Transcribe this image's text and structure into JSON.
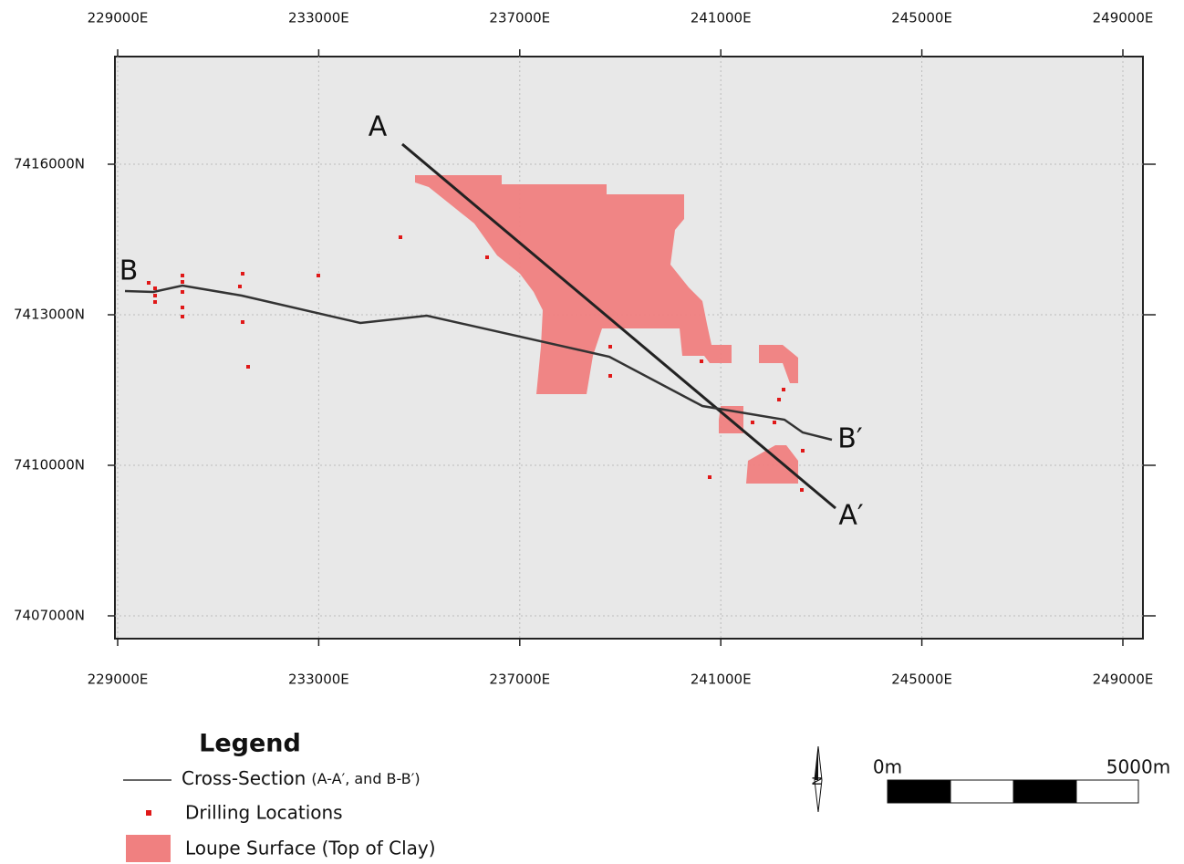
{
  "map": {
    "x_ticks": [
      "229000E",
      "233000E",
      "237000E",
      "241000E",
      "245000E",
      "249000E"
    ],
    "y_ticks": [
      "7416000N",
      "7413000N",
      "7410000N",
      "7407000N"
    ],
    "section_labels": [
      "A",
      "A′",
      "B",
      "B′"
    ],
    "legend": {
      "title": "Legend",
      "items": [
        {
          "label": "Cross-Section",
          "note": "(A-A′, and B-B′)"
        },
        {
          "label": "Drilling Locations"
        },
        {
          "label": "Loupe Surface (Top of Clay)"
        }
      ]
    },
    "scale_bar": {
      "start": "0m",
      "end": "5000m"
    },
    "north": "N"
  }
}
